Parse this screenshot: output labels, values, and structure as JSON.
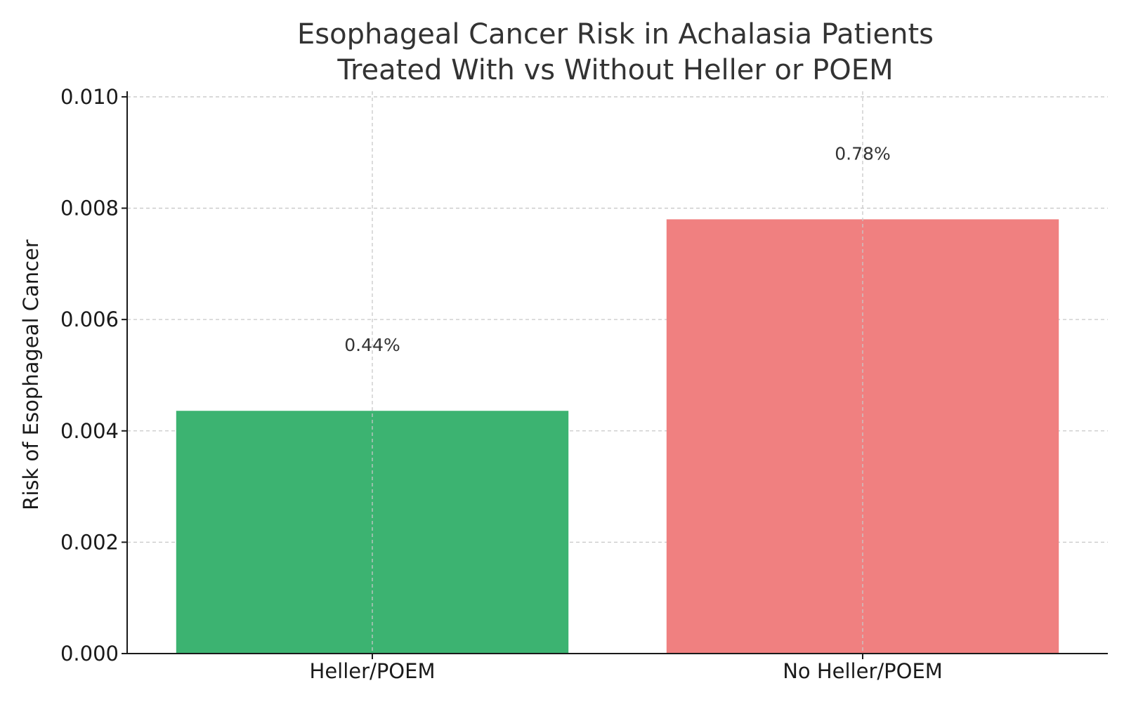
{
  "chart_data": {
    "type": "bar",
    "title_lines": [
      "Esophageal Cancer Risk in Achalasia Patients",
      "Treated With vs Without Heller or POEM"
    ],
    "xlabel": "",
    "ylabel": "Risk of Esophageal Cancer",
    "categories": [
      "Heller/POEM",
      "No Heller/POEM"
    ],
    "values": [
      0.00436,
      0.0078
    ],
    "data_labels": [
      "0.44%",
      "0.78%"
    ],
    "colors": [
      "#3cb371",
      "#f08080"
    ],
    "ylim": [
      0,
      0.0101
    ],
    "yticks": [
      "0.000",
      "0.002",
      "0.004",
      "0.006",
      "0.008",
      "0.010"
    ],
    "ytick_values": [
      0,
      0.002,
      0.004,
      0.006,
      0.008,
      0.01
    ],
    "grid": true
  }
}
